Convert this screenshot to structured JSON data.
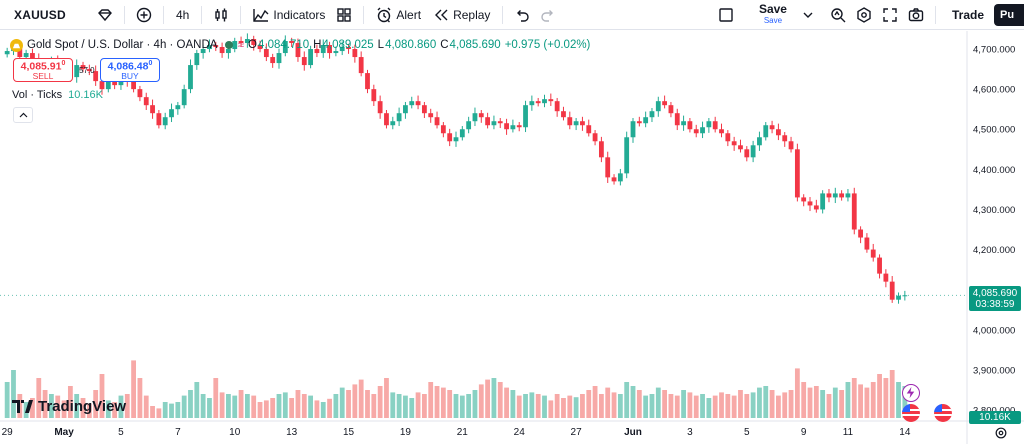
{
  "toolbar": {
    "symbol": "XAUUSD",
    "interval": "4h",
    "indicators_label": "Indicators",
    "alert_label": "Alert",
    "replay_label": "Replay",
    "save_label": "Save",
    "save_sub_label": "Save",
    "trade_label": "Trade",
    "publish_label": "Pu"
  },
  "legend": {
    "title": "Gold Spot / U.S. Dollar · 4h · OANDA",
    "o_label": "O",
    "o_value": "4,084.710",
    "h_label": "H",
    "h_value": "4,089.025",
    "l_label": "L",
    "l_value": "4,080.860",
    "c_label": "C",
    "c_value": "4,085.690",
    "change": "+0.975 (+0.02%)"
  },
  "trade_panel": {
    "sell_price": "4,085.91",
    "sell_price_sup": "0",
    "sell_label": "SELL",
    "spread": "57.0",
    "buy_price": "4,086.48",
    "buy_price_sup": "0",
    "buy_label": "BUY"
  },
  "volume_legend": {
    "label": "Vol · Ticks",
    "value": "10.16K"
  },
  "price_tag": {
    "price": "4,085.690",
    "countdown": "03:38:59"
  },
  "volume_tag": "10.16K",
  "logo_text": "TradingView",
  "colors": {
    "up": "#22ab94",
    "down": "#f23645",
    "vol_up": "#89d1c3",
    "vol_down": "#f7a9a7",
    "accent": "#2962ff"
  },
  "chart_data": {
    "type": "candlestick",
    "y_axis": {
      "ticks": [
        "4,700.000",
        "4,600.000",
        "4,500.000",
        "4,400.000",
        "4,300.000",
        "4,200.000",
        "4,100.000",
        "4,000.000",
        "3,900.000",
        "3,800.000"
      ],
      "tick_values": [
        4700,
        4600,
        4500,
        4400,
        4300,
        4200,
        4100,
        4000,
        3900,
        3800
      ],
      "range": [
        3780,
        4730
      ]
    },
    "x_axis": {
      "labels": [
        "29",
        "May",
        "5",
        "7",
        "10",
        "13",
        "15",
        "19",
        "21",
        "24",
        "27",
        "Jun",
        "3",
        "5",
        "9",
        "11",
        "14"
      ],
      "bold_labels": [
        "May",
        "Jun"
      ],
      "label_bar_index": [
        0,
        9,
        18,
        27,
        36,
        45,
        54,
        63,
        72,
        81,
        90,
        99,
        108,
        117,
        126,
        133,
        142
      ]
    },
    "last_price": 4085.69,
    "closes": [
      4695,
      4705,
      4680,
      4690,
      4675,
      4665,
      4650,
      4670,
      4655,
      4640,
      4630,
      4660,
      4650,
      4645,
      4620,
      4600,
      4630,
      4610,
      4640,
      4620,
      4600,
      4580,
      4560,
      4540,
      4510,
      4530,
      4550,
      4560,
      4600,
      4660,
      4690,
      4700,
      4710,
      4705,
      4690,
      4700,
      4720,
      4715,
      4725,
      4710,
      4700,
      4680,
      4665,
      4690,
      4720,
      4715,
      4680,
      4660,
      4700,
      4690,
      4710,
      4690,
      4695,
      4705,
      4700,
      4680,
      4640,
      4600,
      4570,
      4540,
      4510,
      4520,
      4540,
      4560,
      4570,
      4560,
      4540,
      4530,
      4510,
      4490,
      4470,
      4480,
      4500,
      4520,
      4540,
      4530,
      4510,
      4520,
      4515,
      4500,
      4510,
      4505,
      4560,
      4570,
      4565,
      4575,
      4570,
      4545,
      4530,
      4510,
      4520,
      4510,
      4490,
      4470,
      4430,
      4380,
      4370,
      4390,
      4480,
      4520,
      4515,
      4530,
      4545,
      4570,
      4560,
      4540,
      4510,
      4520,
      4500,
      4490,
      4505,
      4520,
      4500,
      4490,
      4470,
      4460,
      4450,
      4430,
      4460,
      4480,
      4510,
      4500,
      4485,
      4470,
      4450,
      4330,
      4320,
      4310,
      4300,
      4340,
      4330,
      4340,
      4330,
      4340,
      4250,
      4230,
      4200,
      4180,
      4140,
      4120,
      4075,
      4085,
      4086
    ],
    "volumes": [
      0.45,
      0.6,
      0.3,
      0.2,
      0.25,
      0.5,
      0.35,
      0.3,
      0.28,
      0.22,
      0.4,
      0.3,
      0.25,
      0.18,
      0.35,
      0.55,
      0.22,
      0.2,
      0.28,
      0.3,
      0.72,
      0.5,
      0.28,
      0.15,
      0.12,
      0.2,
      0.18,
      0.2,
      0.28,
      0.35,
      0.45,
      0.3,
      0.25,
      0.5,
      0.32,
      0.3,
      0.28,
      0.35,
      0.3,
      0.28,
      0.2,
      0.22,
      0.25,
      0.3,
      0.32,
      0.25,
      0.35,
      0.3,
      0.28,
      0.22,
      0.2,
      0.24,
      0.3,
      0.38,
      0.35,
      0.42,
      0.48,
      0.35,
      0.3,
      0.4,
      0.5,
      0.32,
      0.3,
      0.28,
      0.25,
      0.32,
      0.3,
      0.45,
      0.4,
      0.38,
      0.35,
      0.3,
      0.28,
      0.3,
      0.35,
      0.42,
      0.48,
      0.5,
      0.45,
      0.38,
      0.35,
      0.28,
      0.3,
      0.32,
      0.3,
      0.28,
      0.22,
      0.3,
      0.25,
      0.28,
      0.26,
      0.3,
      0.35,
      0.4,
      0.3,
      0.38,
      0.32,
      0.3,
      0.45,
      0.4,
      0.35,
      0.28,
      0.3,
      0.38,
      0.35,
      0.3,
      0.28,
      0.35,
      0.32,
      0.28,
      0.3,
      0.25,
      0.28,
      0.32,
      0.3,
      0.28,
      0.35,
      0.3,
      0.32,
      0.38,
      0.4,
      0.35,
      0.28,
      0.32,
      0.35,
      0.62,
      0.45,
      0.38,
      0.4,
      0.35,
      0.3,
      0.38,
      0.35,
      0.45,
      0.5,
      0.42,
      0.38,
      0.45,
      0.55,
      0.5,
      0.6,
      0.45,
      0.4
    ]
  }
}
